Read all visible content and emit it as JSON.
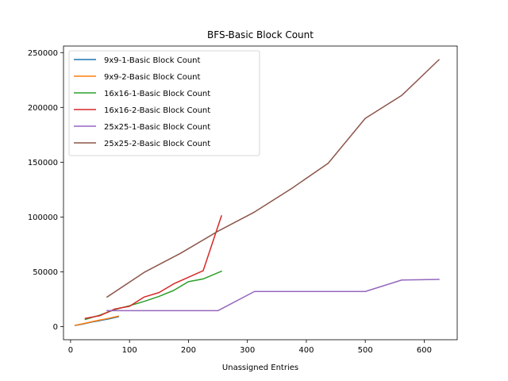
{
  "chart_data": {
    "type": "line",
    "title": "BFS-Basic Block Count",
    "xlabel": "Unassigned Entries",
    "ylabel": "",
    "xlim": [
      -12,
      656
    ],
    "ylim": [
      -12000,
      256000
    ],
    "xticks": [
      0,
      100,
      200,
      300,
      400,
      500,
      600
    ],
    "yticks": [
      0,
      50000,
      100000,
      150000,
      200000,
      250000
    ],
    "grid": false,
    "legend_position": "upper-left",
    "series": [
      {
        "name": "9x9-1-Basic Block Count",
        "color": "#1f77b4",
        "x": [
          8,
          20,
          35,
          50,
          65,
          81
        ],
        "y": [
          1000,
          2200,
          4000,
          5500,
          7000,
          9000
        ]
      },
      {
        "name": "9x9-2-Basic Block Count",
        "color": "#ff7f0e",
        "x": [
          8,
          20,
          35,
          50,
          65,
          81
        ],
        "y": [
          1200,
          2500,
          4300,
          6000,
          7600,
          9500
        ]
      },
      {
        "name": "16x16-1-Basic Block Count",
        "color": "#2ca02c",
        "x": [
          25,
          50,
          75,
          100,
          125,
          150,
          175,
          200,
          225,
          256
        ],
        "y": [
          6500,
          10500,
          15500,
          19000,
          23000,
          27500,
          33000,
          41000,
          43500,
          50500
        ]
      },
      {
        "name": "16x16-2-Basic Block Count",
        "color": "#d62728",
        "x": [
          25,
          50,
          75,
          100,
          125,
          150,
          175,
          200,
          225,
          256
        ],
        "y": [
          7500,
          10000,
          16000,
          18500,
          27000,
          31000,
          39000,
          45000,
          51000,
          101000
        ]
      },
      {
        "name": "25x25-1-Basic Block Count",
        "color": "#9467bd",
        "x": [
          62,
          125,
          187,
          250,
          312,
          375,
          437,
          500,
          562,
          625
        ],
        "y": [
          14500,
          14500,
          14500,
          14500,
          32000,
          32000,
          32000,
          32000,
          42500,
          43000
        ]
      },
      {
        "name": "25x25-2-Basic Block Count",
        "color": "#8c564b",
        "x": [
          62,
          125,
          187,
          250,
          312,
          375,
          437,
          500,
          562,
          625
        ],
        "y": [
          27000,
          49500,
          67000,
          87000,
          104500,
          126000,
          149000,
          190000,
          211000,
          243500
        ]
      }
    ]
  }
}
